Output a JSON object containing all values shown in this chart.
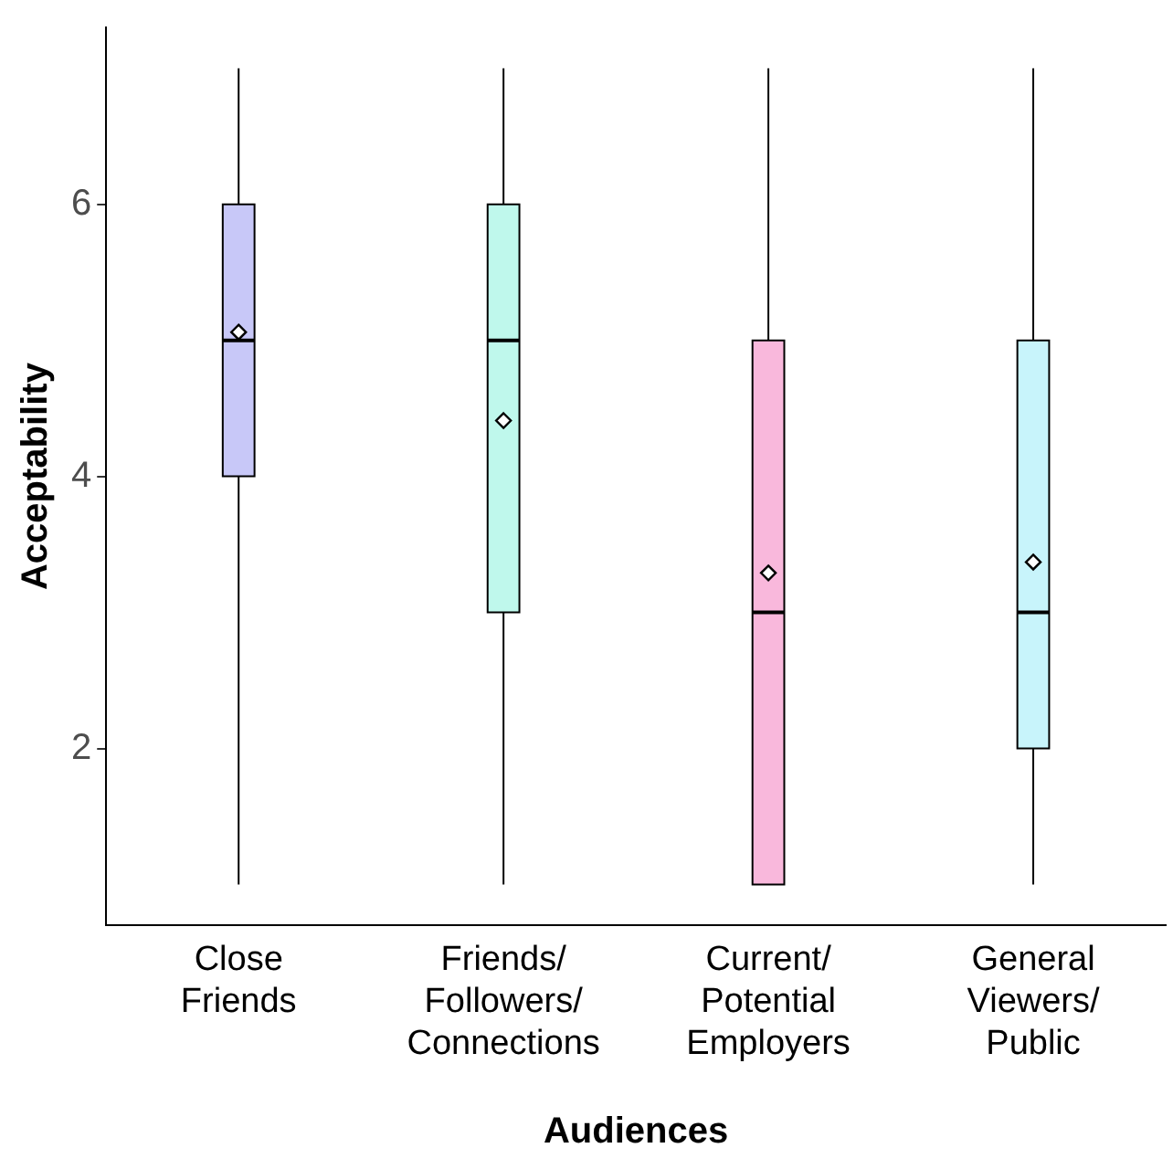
{
  "chart_data": {
    "type": "box",
    "xlabel": "Audiences",
    "ylabel": "Acceptability",
    "categories": [
      "Close Friends",
      "Friends/Followers/Connections",
      "Current/Potential Employers",
      "General Viewers/Public"
    ],
    "colors": [
      "#c8c8f8",
      "#bff8ec",
      "#f9b8dc",
      "#c8f4fb"
    ],
    "boxes": [
      {
        "low": 1,
        "q1": 4,
        "median": 5,
        "q3": 6,
        "high": 7,
        "mean": 5.06
      },
      {
        "low": 1,
        "q1": 3,
        "median": 5,
        "q3": 6,
        "high": 7,
        "mean": 4.41
      },
      {
        "low": 1,
        "q1": 1,
        "median": 3,
        "q3": 5,
        "high": 7,
        "mean": 3.29
      },
      {
        "low": 1,
        "q1": 2,
        "median": 3,
        "q3": 5,
        "high": 7,
        "mean": 3.37
      }
    ],
    "ylim": [
      0.7,
      7.3
    ],
    "yticks": [
      2,
      4,
      6
    ],
    "grid": false,
    "legend": false,
    "marker": "diamond"
  }
}
